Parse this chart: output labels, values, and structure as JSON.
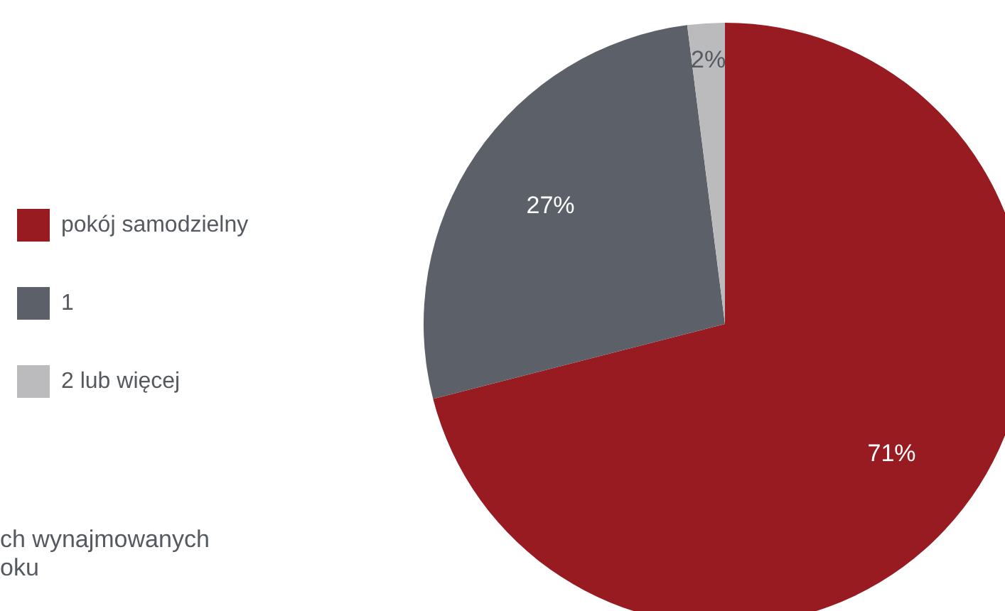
{
  "chart_data": {
    "type": "pie",
    "categories": [
      "pokój samodzielny",
      "1",
      "2 lub więcej"
    ],
    "values": [
      71,
      27,
      2
    ],
    "colors": [
      "#981b22",
      "#5c6068",
      "#bbbbbd"
    ],
    "value_labels": [
      "71%",
      "27%",
      "2%"
    ],
    "legend": "left",
    "annotations": [
      "ch wynajmowanych\noku"
    ]
  }
}
